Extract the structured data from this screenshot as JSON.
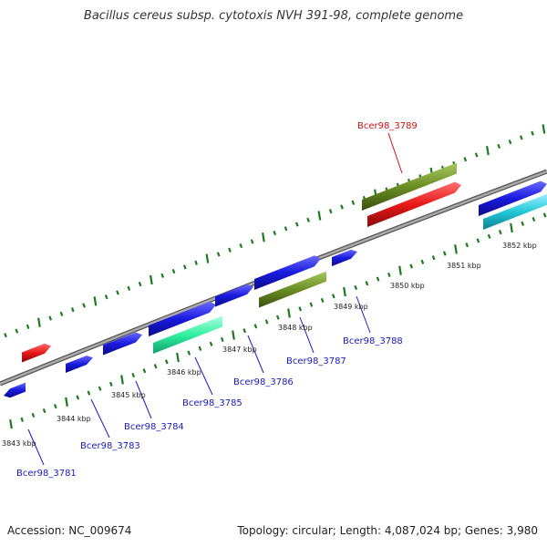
{
  "title": "Bacillus cereus subsp. cytotoxis NVH 391-98, complete genome",
  "footer": {
    "accession": "Accession: NC_009674",
    "summary": "Topology: circular; Length: 4,087,024 bp; Genes: 3,980"
  },
  "colors": {
    "backbone": "#888888",
    "ticks": "#1e7a1e",
    "forward_cds": "#1a1adf",
    "reverse_cds": "#1a1adf",
    "rna": "#e81818",
    "green_feature": "#6b8e23",
    "mint_feature": "#30f0a0",
    "cyan_feature": "#20c8d8",
    "label_blue": "#1a1ab8",
    "label_red": "#cc1111"
  },
  "kbp_labels": [
    "3843 kbp",
    "3844 kbp",
    "3845 kbp",
    "3846 kbp",
    "3847 kbp",
    "3848 kbp",
    "3849 kbp",
    "3850 kbp",
    "3851 kbp",
    "3852 kbp"
  ],
  "gene_labels": [
    {
      "id": "Bcer98_3781",
      "color": "blue"
    },
    {
      "id": "Bcer98_3783",
      "color": "blue"
    },
    {
      "id": "Bcer98_3784",
      "color": "blue"
    },
    {
      "id": "Bcer98_3785",
      "color": "blue"
    },
    {
      "id": "Bcer98_3786",
      "color": "blue"
    },
    {
      "id": "Bcer98_3787",
      "color": "blue"
    },
    {
      "id": "Bcer98_3788",
      "color": "blue"
    },
    {
      "id": "Bcer98_3789",
      "color": "red"
    }
  ]
}
